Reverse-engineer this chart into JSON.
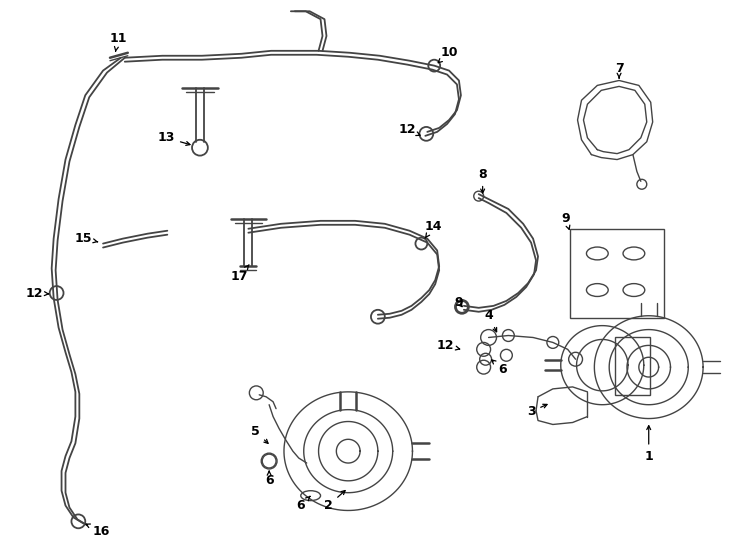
{
  "background_color": "#ffffff",
  "line_color": "#444444",
  "fig_width": 7.34,
  "fig_height": 5.4,
  "lw_pipe": 1.3,
  "lw_thin": 1.0,
  "lw_thick": 1.8
}
